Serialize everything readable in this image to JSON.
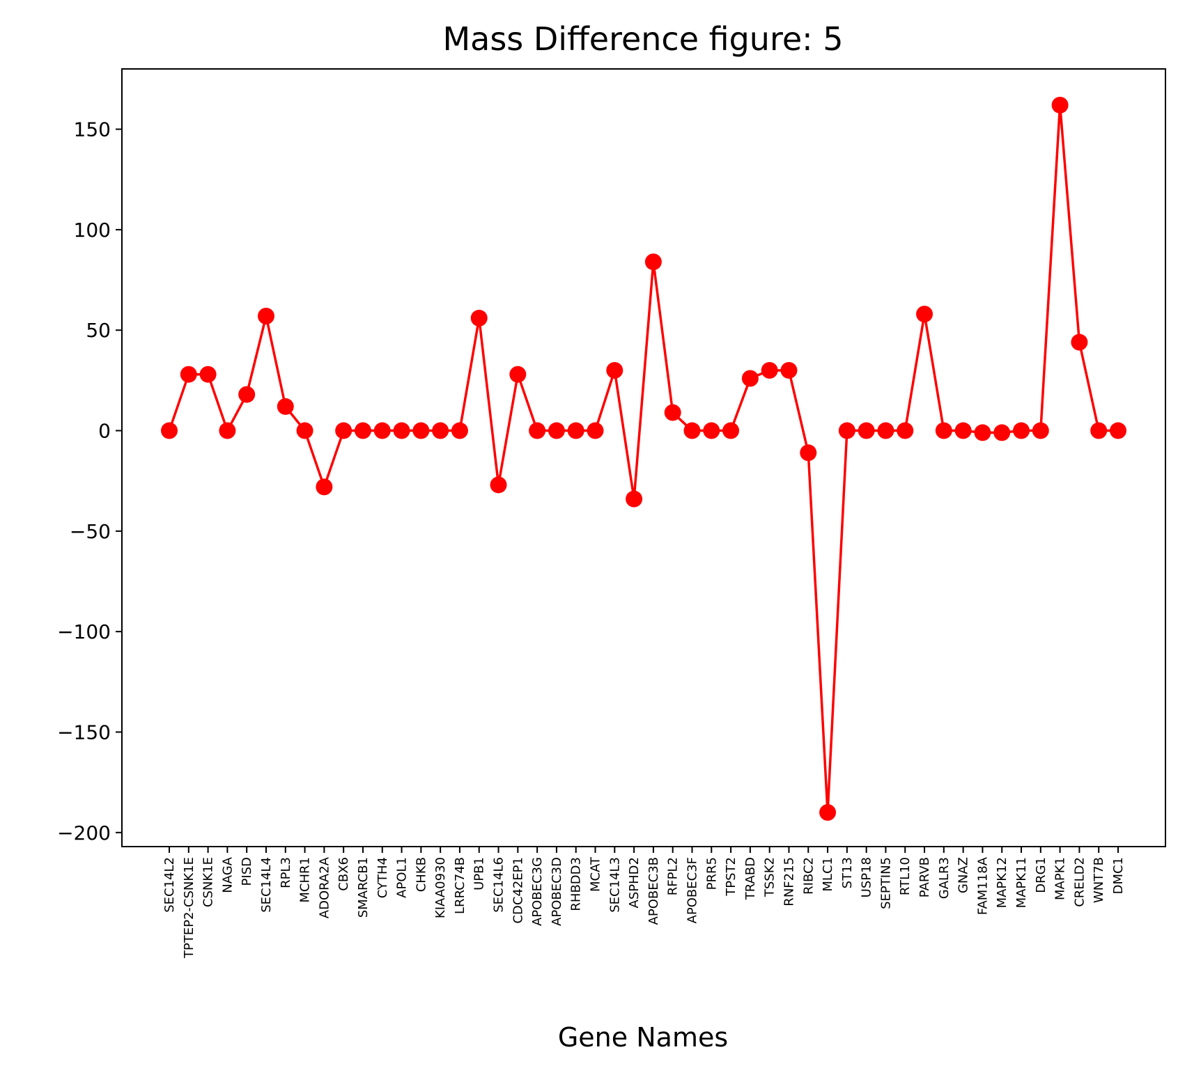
{
  "chart_data": {
    "type": "line",
    "title": "Mass Difference figure: 5",
    "xlabel": "Gene Names",
    "ylabel": "",
    "ylim": [
      -207,
      180
    ],
    "y_ticks": [
      150,
      100,
      50,
      0,
      -50,
      -100,
      -150,
      -200
    ],
    "y_tick_labels": [
      "150",
      "100",
      "50",
      "0",
      "−50",
      "−100",
      "−150",
      "−200"
    ],
    "grid": false,
    "legend": "none",
    "categories": [
      "SEC14L2",
      "TPTEP2-CSNK1E",
      "CSNK1E",
      "NAGA",
      "PISD",
      "SEC14L4",
      "RPL3",
      "MCHR1",
      "ADORA2A",
      "CBX6",
      "SMARCB1",
      "CYTH4",
      "APOL1",
      "CHKB",
      "KIAA0930",
      "LRRC74B",
      "UPB1",
      "SEC14L6",
      "CDC42EP1",
      "APOBEC3G",
      "APOBEC3D",
      "RHBDD3",
      "MCAT",
      "SEC14L3",
      "ASPHD2",
      "APOBEC3B",
      "RFPL2",
      "APOBEC3F",
      "PRR5",
      "TPST2",
      "TRABD",
      "TSSK2",
      "RNF215",
      "RIBC2",
      "MLC1",
      "ST13",
      "USP18",
      "SEPTIN5",
      "RTL10",
      "PARVB",
      "GALR3",
      "GNAZ",
      "FAM118A",
      "MAPK12",
      "MAPK11",
      "DRG1",
      "MAPK1",
      "CRELD2",
      "WNT7B",
      "DMC1"
    ],
    "series": [
      {
        "values": [
          0,
          28,
          28,
          0,
          18,
          57,
          12,
          0,
          -28,
          0,
          0,
          0,
          0,
          0,
          0,
          0,
          56,
          -27,
          28,
          0,
          0,
          0,
          0,
          30,
          -34,
          84,
          9,
          0,
          0,
          0,
          26,
          30,
          30,
          -11,
          -190,
          0,
          0,
          0,
          0,
          58,
          0,
          0,
          -1,
          -1,
          0,
          0,
          162,
          44,
          0,
          0
        ],
        "color": "#ff0000",
        "marker": "circle"
      }
    ]
  }
}
